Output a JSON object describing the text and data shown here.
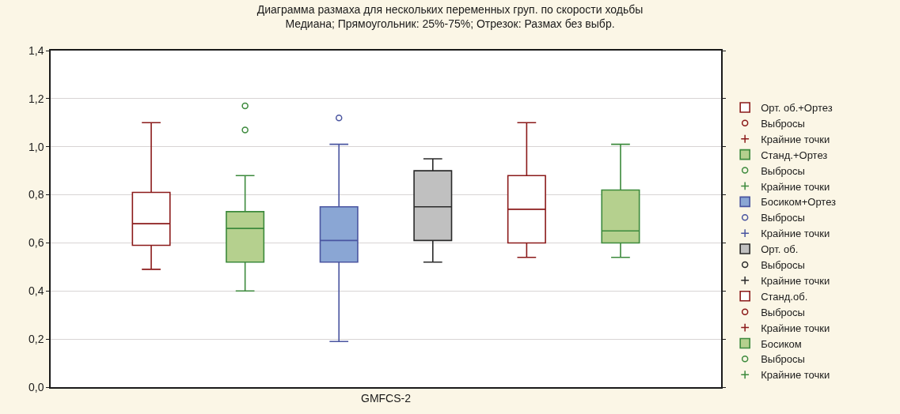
{
  "chart_data": {
    "type": "box",
    "title": "Диаграмма размаха для нескольких переменных груп. по скорости ходьбы",
    "subtitle": "Медиана; Прямоугольник: 25%-75%; Отрезок: Размах без выбр.",
    "categories": [
      "GMFCS-2"
    ],
    "ylim": [
      0,
      1.4
    ],
    "yticks": [
      {
        "value": 0,
        "label": "0,0"
      },
      {
        "value": 0.2,
        "label": "0,2"
      },
      {
        "value": 0.4,
        "label": "0,4"
      },
      {
        "value": 0.6,
        "label": "0,6"
      },
      {
        "value": 0.8,
        "label": "0,8"
      },
      {
        "value": 1.0,
        "label": "1,0"
      },
      {
        "value": 1.2,
        "label": "1,2"
      },
      {
        "value": 1.4,
        "label": "1,4"
      }
    ],
    "grid": "y",
    "legend": "right",
    "series": [
      {
        "name": "Орт. об.+Ортез",
        "color": "#8b1a1a",
        "colors": [
          "#ffffff"
        ],
        "boxes": [
          {
            "low": 0.49,
            "q1": 0.59,
            "median": 0.68,
            "q3": 0.81,
            "high": 1.1
          }
        ]
      },
      {
        "name": "Выбросы",
        "type": "scatter",
        "color": "#8b1a1a",
        "marker": "circle",
        "values": [
          null
        ]
      },
      {
        "name": "Крайние точки",
        "type": "scatter",
        "color": "#8b1a1a",
        "marker": "cross",
        "values": [
          null
        ]
      },
      {
        "name": "Станд.+Ортез",
        "color": "#3d8a3d",
        "colors": [
          "#b5d08e"
        ],
        "boxes": [
          {
            "low": 0.4,
            "q1": 0.52,
            "median": 0.66,
            "q3": 0.73,
            "high": 0.88
          }
        ]
      },
      {
        "name": "Выбросы",
        "type": "scatter",
        "color": "#3d8a3d",
        "marker": "circle",
        "x": [
          "GMFCS-2",
          "GMFCS-2"
        ],
        "values": [
          1.17,
          1.07
        ]
      },
      {
        "name": "Крайние точки",
        "type": "scatter",
        "color": "#3d8a3d",
        "marker": "cross",
        "values": [
          null
        ]
      },
      {
        "name": "Босиком+Ортез",
        "color": "#4a55a0",
        "colors": [
          "#8aa6d4"
        ],
        "boxes": [
          {
            "low": 0.19,
            "q1": 0.52,
            "median": 0.61,
            "q3": 0.75,
            "high": 1.01
          }
        ]
      },
      {
        "name": "Выбросы",
        "type": "scatter",
        "color": "#4a55a0",
        "marker": "circle",
        "x": [
          "GMFCS-2"
        ],
        "values": [
          1.12
        ]
      },
      {
        "name": "Крайние точки",
        "type": "scatter",
        "color": "#4a55a0",
        "marker": "cross",
        "values": [
          null
        ]
      },
      {
        "name": "Орт. об.",
        "color": "#2a2a2a",
        "colors": [
          "#c0c0c0"
        ],
        "boxes": [
          {
            "low": 0.52,
            "q1": 0.61,
            "median": 0.75,
            "q3": 0.9,
            "high": 0.95
          }
        ]
      },
      {
        "name": "Выбросы",
        "type": "scatter",
        "color": "#2a2a2a",
        "marker": "circle",
        "values": [
          null
        ]
      },
      {
        "name": "Крайние точки",
        "type": "scatter",
        "color": "#2a2a2a",
        "marker": "cross",
        "values": [
          null
        ]
      },
      {
        "name": "Станд.об.",
        "color": "#8b1a1a",
        "colors": [
          "#ffffff"
        ],
        "boxes": [
          {
            "low": 0.54,
            "q1": 0.6,
            "median": 0.74,
            "q3": 0.88,
            "high": 1.1
          }
        ]
      },
      {
        "name": "Выбросы",
        "type": "scatter",
        "color": "#8b1a1a",
        "marker": "circle",
        "values": [
          null
        ]
      },
      {
        "name": "Крайние точки",
        "type": "scatter",
        "color": "#8b1a1a",
        "marker": "cross",
        "values": [
          null
        ]
      },
      {
        "name": "Босиком",
        "color": "#3d8a3d",
        "colors": [
          "#b5d08e"
        ],
        "boxes": [
          {
            "low": 0.54,
            "q1": 0.6,
            "median": 0.65,
            "q3": 0.82,
            "high": 1.01
          }
        ]
      },
      {
        "name": "Выбросы",
        "type": "scatter",
        "color": "#3d8a3d",
        "marker": "circle",
        "values": [
          null
        ]
      },
      {
        "name": "Крайние точки",
        "type": "scatter",
        "color": "#3d8a3d",
        "marker": "cross",
        "values": [
          null
        ]
      }
    ]
  }
}
